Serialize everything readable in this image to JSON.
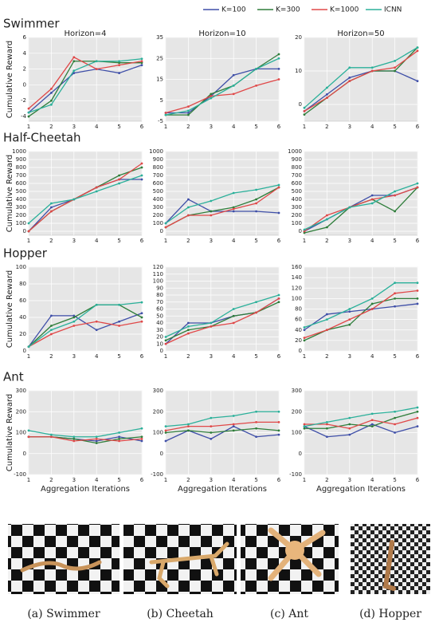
{
  "legend": [
    {
      "name": "K=100",
      "color": "#3f4fa8"
    },
    {
      "name": "K=300",
      "color": "#2e7d3a"
    },
    {
      "name": "K=1000",
      "color": "#e04848"
    },
    {
      "name": "ICNN",
      "color": "#2bb09a"
    }
  ],
  "rows": [
    "Swimmer",
    "Half-Cheetah",
    "Hopper",
    "Ant"
  ],
  "ylabel": "Cumulative Reward",
  "xlabel": "Aggregation Iterations",
  "chart_data": [
    {
      "type": "line",
      "title": "Horizon=4",
      "x": [
        1,
        2,
        3,
        4,
        5,
        6
      ],
      "xlim": [
        1,
        6
      ],
      "xticks": [
        1,
        2,
        3,
        4,
        5,
        6
      ],
      "ylim": [
        -4.6,
        6
      ],
      "yticks": [
        -4,
        -2,
        0,
        2,
        4,
        6
      ],
      "series": [
        {
          "values": [
            -3.5,
            -1,
            1.5,
            2,
            1.5,
            2.5
          ]
        },
        {
          "values": [
            -4,
            -2,
            3,
            3,
            2.8,
            2.8
          ]
        },
        {
          "values": [
            -3,
            -0.5,
            3.5,
            2,
            2.5,
            3
          ]
        },
        {
          "values": [
            -3.5,
            -2.5,
            1.8,
            3,
            3,
            3.3
          ]
        }
      ]
    },
    {
      "type": "line",
      "title": "Horizon=10",
      "x": [
        1,
        2,
        3,
        4,
        5,
        6
      ],
      "xlim": [
        1,
        6
      ],
      "xticks": [
        1,
        2,
        3,
        4,
        5,
        6
      ],
      "ylim": [
        -5,
        35
      ],
      "yticks": [
        -5,
        5,
        15,
        25,
        35
      ],
      "series": [
        {
          "values": [
            -1,
            -1,
            7,
            17,
            20,
            20
          ]
        },
        {
          "values": [
            -2,
            -2,
            8,
            12,
            20,
            27
          ]
        },
        {
          "values": [
            -1,
            2,
            7,
            8,
            12,
            15
          ]
        },
        {
          "values": [
            -2,
            0,
            6,
            12,
            20,
            25
          ]
        }
      ]
    },
    {
      "type": "line",
      "title": "Horizon=50",
      "x": [
        1,
        2,
        3,
        4,
        5,
        6
      ],
      "xlim": [
        1,
        6
      ],
      "xticks": [
        1,
        2,
        3,
        4,
        5,
        6
      ],
      "ylim": [
        -5,
        20
      ],
      "yticks": [
        0,
        10,
        20
      ],
      "series": [
        {
          "values": [
            -2,
            3,
            8,
            10,
            10,
            7
          ]
        },
        {
          "values": [
            -3,
            2,
            7,
            10,
            10,
            17
          ]
        },
        {
          "values": [
            -2,
            2,
            7,
            10,
            11,
            16
          ]
        },
        {
          "values": [
            -1,
            5,
            11,
            11,
            13,
            17
          ]
        }
      ]
    },
    {
      "type": "line",
      "x": [
        1,
        2,
        3,
        4,
        5,
        6
      ],
      "xlim": [
        1,
        6
      ],
      "xticks": [
        1,
        2,
        3,
        4,
        5,
        6
      ],
      "ylim": [
        -50,
        1000
      ],
      "yticks": [
        0,
        100,
        200,
        300,
        400,
        500,
        600,
        700,
        800,
        900,
        1000
      ],
      "series": [
        {
          "values": [
            0,
            300,
            400,
            550,
            650,
            650
          ]
        },
        {
          "values": [
            0,
            250,
            400,
            550,
            700,
            800
          ]
        },
        {
          "values": [
            0,
            250,
            400,
            550,
            650,
            850
          ]
        },
        {
          "values": [
            100,
            350,
            400,
            500,
            600,
            700
          ]
        }
      ]
    },
    {
      "type": "line",
      "x": [
        1,
        2,
        3,
        4,
        5,
        6
      ],
      "xlim": [
        1,
        6
      ],
      "xticks": [
        1,
        2,
        3,
        4,
        5,
        6
      ],
      "ylim": [
        -50,
        1000
      ],
      "yticks": [
        0,
        100,
        200,
        300,
        400,
        500,
        600,
        700,
        800,
        900,
        1000
      ],
      "series": [
        {
          "values": [
            100,
            400,
            250,
            250,
            250,
            230
          ]
        },
        {
          "values": [
            50,
            200,
            250,
            300,
            400,
            550
          ]
        },
        {
          "values": [
            50,
            200,
            200,
            280,
            350,
            550
          ]
        },
        {
          "values": [
            100,
            300,
            380,
            480,
            520,
            580
          ]
        }
      ]
    },
    {
      "type": "line",
      "x": [
        1,
        2,
        3,
        4,
        5,
        6
      ],
      "xlim": [
        1,
        6
      ],
      "xticks": [
        1,
        2,
        3,
        4,
        5,
        6
      ],
      "ylim": [
        -50,
        1000
      ],
      "yticks": [
        0,
        100,
        200,
        300,
        400,
        500,
        600,
        700,
        800,
        900,
        1000
      ],
      "series": [
        {
          "values": [
            0,
            150,
            300,
            450,
            450,
            550
          ]
        },
        {
          "values": [
            -20,
            50,
            300,
            400,
            250,
            550
          ]
        },
        {
          "values": [
            0,
            200,
            300,
            400,
            450,
            550
          ]
        },
        {
          "values": [
            20,
            150,
            300,
            350,
            500,
            600
          ]
        }
      ]
    },
    {
      "type": "line",
      "x": [
        1,
        2,
        3,
        4,
        5,
        6
      ],
      "xlim": [
        1,
        6
      ],
      "xticks": [
        1,
        2,
        3,
        4,
        5,
        6
      ],
      "ylim": [
        0,
        100
      ],
      "yticks": [
        0,
        20,
        40,
        60,
        80,
        100
      ],
      "series": [
        {
          "values": [
            5,
            42,
            42,
            25,
            35,
            45
          ]
        },
        {
          "values": [
            5,
            30,
            40,
            55,
            55,
            40
          ]
        },
        {
          "values": [
            5,
            20,
            30,
            35,
            30,
            35
          ]
        },
        {
          "values": [
            5,
            25,
            35,
            55,
            55,
            58
          ]
        }
      ]
    },
    {
      "type": "line",
      "x": [
        1,
        2,
        3,
        4,
        5,
        6
      ],
      "xlim": [
        1,
        6
      ],
      "xticks": [
        1,
        2,
        3,
        4,
        5,
        6
      ],
      "ylim": [
        0,
        120
      ],
      "yticks": [
        0,
        10,
        20,
        30,
        40,
        50,
        60,
        70,
        80,
        90,
        100,
        110,
        120
      ],
      "series": [
        {
          "values": [
            10,
            40,
            40,
            50,
            55,
            75
          ]
        },
        {
          "values": [
            15,
            30,
            35,
            50,
            55,
            70
          ]
        },
        {
          "values": [
            10,
            25,
            35,
            40,
            55,
            75
          ]
        },
        {
          "values": [
            20,
            35,
            40,
            60,
            70,
            80
          ]
        }
      ]
    },
    {
      "type": "line",
      "x": [
        1,
        2,
        3,
        4,
        5,
        6
      ],
      "xlim": [
        1,
        6
      ],
      "xticks": [
        1,
        2,
        3,
        4,
        5,
        6
      ],
      "ylim": [
        0,
        160
      ],
      "yticks": [
        0,
        20,
        40,
        60,
        80,
        100,
        120,
        140,
        160
      ],
      "series": [
        {
          "values": [
            40,
            70,
            75,
            80,
            85,
            90
          ]
        },
        {
          "values": [
            20,
            40,
            50,
            90,
            100,
            100
          ]
        },
        {
          "values": [
            25,
            40,
            60,
            80,
            110,
            115
          ]
        },
        {
          "values": [
            45,
            60,
            80,
            100,
            130,
            130
          ]
        }
      ]
    },
    {
      "type": "line",
      "x": [
        1,
        2,
        3,
        4,
        5,
        6
      ],
      "xlim": [
        1,
        6
      ],
      "xticks": [
        1,
        2,
        3,
        4,
        5,
        6
      ],
      "ylim": [
        -100,
        300
      ],
      "yticks": [
        -100,
        0,
        100,
        200,
        300
      ],
      "series": [
        {
          "values": [
            80,
            80,
            70,
            60,
            80,
            60
          ]
        },
        {
          "values": [
            80,
            80,
            70,
            50,
            70,
            80
          ]
        },
        {
          "values": [
            80,
            80,
            60,
            70,
            60,
            70
          ]
        },
        {
          "values": [
            110,
            90,
            80,
            80,
            100,
            120
          ]
        }
      ]
    },
    {
      "type": "line",
      "x": [
        1,
        2,
        3,
        4,
        5,
        6
      ],
      "xlim": [
        1,
        6
      ],
      "xticks": [
        1,
        2,
        3,
        4,
        5,
        6
      ],
      "ylim": [
        -100,
        300
      ],
      "yticks": [
        -100,
        0,
        100,
        200,
        300
      ],
      "series": [
        {
          "values": [
            60,
            110,
            70,
            130,
            80,
            90
          ]
        },
        {
          "values": [
            100,
            110,
            100,
            110,
            120,
            110
          ]
        },
        {
          "values": [
            110,
            130,
            130,
            140,
            150,
            150
          ]
        },
        {
          "values": [
            130,
            140,
            170,
            180,
            200,
            200
          ]
        }
      ]
    },
    {
      "type": "line",
      "x": [
        1,
        2,
        3,
        4,
        5,
        6
      ],
      "xlim": [
        1,
        6
      ],
      "xticks": [
        1,
        2,
        3,
        4,
        5,
        6
      ],
      "ylim": [
        -100,
        300
      ],
      "yticks": [
        -100,
        0,
        100,
        200,
        300
      ],
      "series": [
        {
          "values": [
            130,
            80,
            90,
            140,
            100,
            130
          ]
        },
        {
          "values": [
            120,
            120,
            140,
            130,
            170,
            200
          ]
        },
        {
          "values": [
            140,
            140,
            120,
            160,
            140,
            170
          ]
        },
        {
          "values": [
            130,
            150,
            170,
            190,
            200,
            220
          ]
        }
      ]
    }
  ],
  "panels": [
    {
      "caption": "(a) Swimmer"
    },
    {
      "caption": "(b) Cheetah"
    },
    {
      "caption": "(c) Ant"
    },
    {
      "caption": "(d) Hopper"
    }
  ]
}
